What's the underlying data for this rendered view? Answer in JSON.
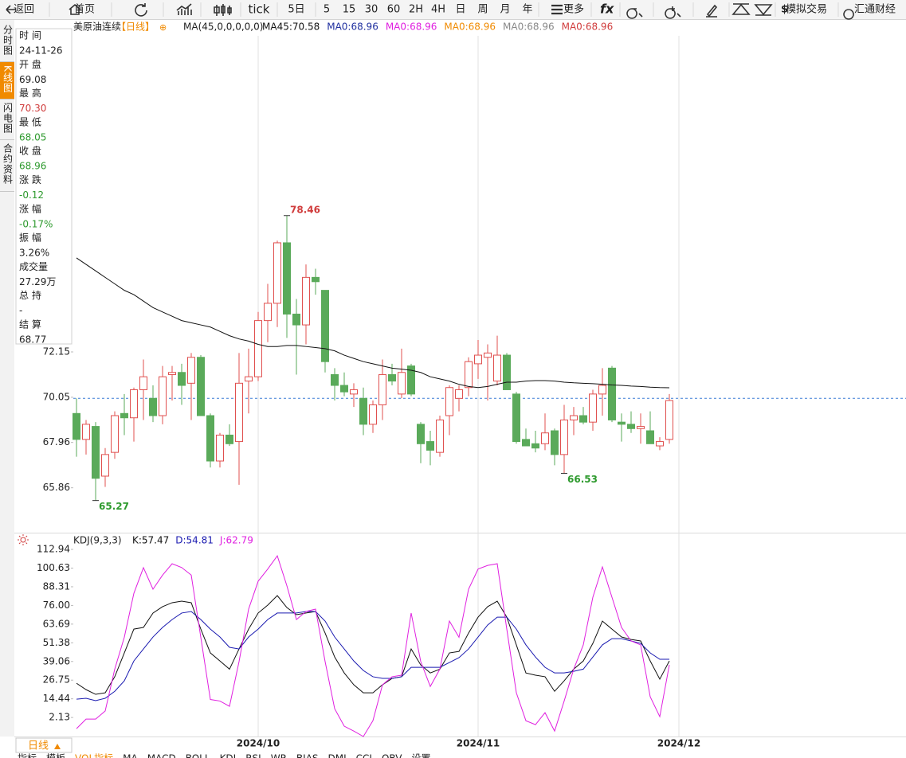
{
  "toolbar": [
    "返回",
    "首页",
    "tick",
    "5日",
    "5",
    "15",
    "30",
    "60",
    "2H",
    "4H",
    "日",
    "周",
    "月",
    "年",
    "更多",
    "模拟交易",
    "汇通财经"
  ],
  "side_tabs": [
    {
      "text": "分时图",
      "active": false
    },
    {
      "text": "K线图",
      "active": true
    },
    {
      "text": "闪电图",
      "active": false
    },
    {
      "text": "合约资料",
      "active": false
    }
  ],
  "info_panel": [
    {
      "label": "时 间",
      "value": "24-11-26",
      "color": "#222222"
    },
    {
      "label": "开 盘",
      "value": "69.08",
      "color": "#222222"
    },
    {
      "label": "最 高",
      "value": "70.30",
      "color": "#d03c3c"
    },
    {
      "label": "最 低",
      "value": "68.05",
      "color": "#2e9a2e"
    },
    {
      "label": "收 盘",
      "value": "68.96",
      "color": "#2e9a2e"
    },
    {
      "label": "涨 跌",
      "value": "-0.12",
      "color": "#2e9a2e"
    },
    {
      "label": "涨 幅",
      "value": "-0.17%",
      "color": "#2e9a2e"
    },
    {
      "label": "振 幅",
      "value": "3.26%",
      "color": "#222222"
    },
    {
      "label": "成交量",
      "value": "27.29万",
      "color": "#222222"
    },
    {
      "label": "总 持",
      "value": "-",
      "color": "#222222"
    },
    {
      "label": "结 算",
      "value": "68.77",
      "color": "#222222"
    }
  ],
  "chart_data": [
    {
      "type": "candlestick",
      "title": "美原油连续",
      "period": "【日线】",
      "indicator": "MA(45,0,0,0,0,0)",
      "legend": [
        {
          "text": "MA45:70.58",
          "color": "#111111"
        },
        {
          "text": "MA0:68.96",
          "color": "#1f2f9f"
        },
        {
          "text": "MA0:68.96",
          "color": "#e020e0"
        },
        {
          "text": "MA0:68.96",
          "color": "#f08a00"
        },
        {
          "text": "MA0:68.96",
          "color": "#888888"
        },
        {
          "text": "MA0:68.96",
          "color": "#d03c3c"
        }
      ],
      "open": [
        69.3,
        68.1,
        68.7,
        66.4,
        67.5,
        69.3,
        69.1,
        70.4,
        70.0,
        69.2,
        71.1,
        71.2,
        70.7,
        71.9,
        69.2,
        67.1,
        68.3,
        68.0,
        70.8,
        71.0,
        73.6,
        74.4,
        77.2,
        73.9,
        73.4,
        75.6,
        75.0,
        71.1,
        70.6,
        70.2,
        70.0,
        68.8,
        69.7,
        71.1,
        70.2,
        71.5,
        68.8,
        68.0,
        67.5,
        69.2,
        70.0,
        70.5,
        71.6,
        71.9,
        70.8,
        72.0,
        70.2,
        68.1,
        67.9,
        67.9,
        68.5,
        67.4,
        69.0,
        69.2,
        68.9,
        70.2,
        71.4,
        68.9,
        68.8,
        68.6,
        68.5,
        67.8,
        68.1
      ],
      "high": [
        70.0,
        69.0,
        68.9,
        67.7,
        69.4,
        70.2,
        70.5,
        71.8,
        70.6,
        71.5,
        71.5,
        71.6,
        72.1,
        72.0,
        69.3,
        68.4,
        68.8,
        72.1,
        72.3,
        74.0,
        75.3,
        77.3,
        78.46,
        74.6,
        76.2,
        76.0,
        75.0,
        71.4,
        71.2,
        70.7,
        70.5,
        69.9,
        71.8,
        71.6,
        72.3,
        71.6,
        68.9,
        68.5,
        69.2,
        70.6,
        70.6,
        71.9,
        72.7,
        72.5,
        72.9,
        72.1,
        70.3,
        68.6,
        68.5,
        69.3,
        68.6,
        69.7,
        69.6,
        69.6,
        70.4,
        71.4,
        71.5,
        69.3,
        69.4,
        69.3,
        69.4,
        68.2,
        70.2
      ],
      "low": [
        67.3,
        67.4,
        65.27,
        65.9,
        67.2,
        68.3,
        68.0,
        69.0,
        68.9,
        68.8,
        69.9,
        69.7,
        69.0,
        69.2,
        66.8,
        66.8,
        67.8,
        66.0,
        69.3,
        70.8,
        72.6,
        73.3,
        72.8,
        71.1,
        72.5,
        74.8,
        71.2,
        69.9,
        70.1,
        69.6,
        68.3,
        68.4,
        69.0,
        70.6,
        70.0,
        70.1,
        67.0,
        66.9,
        67.3,
        68.3,
        69.4,
        70.1,
        70.9,
        69.9,
        70.6,
        70.4,
        67.9,
        67.8,
        67.5,
        67.6,
        66.9,
        66.53,
        68.3,
        68.8,
        68.5,
        69.2,
        68.9,
        68.0,
        68.4,
        67.9,
        67.9,
        67.6,
        67.9
      ],
      "close": [
        68.1,
        68.8,
        66.3,
        67.4,
        69.2,
        69.1,
        70.4,
        71.0,
        69.2,
        71.0,
        71.2,
        70.6,
        71.9,
        69.2,
        67.1,
        68.3,
        67.9,
        70.7,
        71.0,
        73.6,
        74.4,
        77.2,
        73.9,
        73.4,
        75.6,
        75.4,
        71.7,
        70.6,
        70.3,
        70.4,
        68.8,
        69.7,
        71.1,
        70.8,
        71.2,
        70.2,
        67.9,
        67.6,
        69.0,
        70.5,
        70.4,
        71.7,
        72.0,
        72.1,
        72.0,
        70.4,
        68.0,
        67.8,
        67.7,
        68.4,
        67.4,
        69.0,
        69.2,
        68.9,
        70.2,
        70.6,
        69.0,
        68.8,
        68.6,
        68.7,
        67.9,
        68.0,
        69.9
      ],
      "up_color": "#e0504f",
      "down_color": "#5aaa5a",
      "ma": {
        "color": "#111111",
        "values": [
          76.5,
          76.2,
          75.9,
          75.6,
          75.3,
          75.0,
          74.8,
          74.5,
          74.2,
          74.0,
          73.8,
          73.6,
          73.5,
          73.4,
          73.3,
          73.1,
          72.9,
          72.75,
          72.65,
          72.5,
          72.4,
          72.4,
          72.45,
          72.45,
          72.4,
          72.35,
          72.3,
          72.2,
          72.0,
          71.85,
          71.7,
          71.6,
          71.5,
          71.4,
          71.35,
          71.3,
          71.2,
          71.0,
          70.9,
          70.8,
          70.65,
          70.55,
          70.5,
          70.55,
          70.65,
          70.75,
          70.75,
          70.8,
          70.82,
          70.82,
          70.8,
          70.75,
          70.72,
          70.7,
          70.68,
          70.65,
          70.62,
          70.6,
          70.57,
          70.55,
          70.52,
          70.5,
          70.49
        ]
      },
      "last_price": 70.0,
      "last_price_color": "#3a7bd5",
      "annotations": [
        {
          "text": "78.46",
          "index": 22,
          "field": "high",
          "color": "#d03c3c"
        },
        {
          "text": "65.27",
          "index": 2,
          "field": "low",
          "color": "#2e9a2e"
        },
        {
          "text": "66.53",
          "index": 51,
          "field": "low",
          "color": "#2e9a2e"
        }
      ],
      "ylim": [
        63.82,
        86.78
      ],
      "yticks": [
        65.86,
        67.96,
        70.05,
        72.15
      ],
      "xticks": [
        {
          "value": 19,
          "label": "2024/10"
        },
        {
          "value": 42,
          "label": "2024/11"
        },
        {
          "value": 63,
          "label": "2024/12"
        }
      ]
    },
    {
      "type": "line",
      "title": "KDJ(9,3,3)",
      "series": [
        {
          "name": "K:57.47",
          "color": "#111111",
          "values": [
            24.7,
            20.5,
            17.4,
            18.4,
            29,
            44.7,
            60.4,
            61.5,
            71,
            75.2,
            77.8,
            78.8,
            77.8,
            60.4,
            44.7,
            39.4,
            34,
            47.3,
            60.4,
            71,
            76.2,
            82.5,
            74.6,
            69.9,
            71,
            72,
            57.8,
            42,
            31.5,
            23.7,
            18.4,
            18.4,
            23.7,
            27.9,
            29,
            47.3,
            36.8,
            31.5,
            34,
            44.7,
            45.7,
            57.8,
            68.3,
            75.2,
            78.8,
            68.3,
            50,
            31.5,
            30,
            29,
            19.4,
            26.3,
            34,
            39.4,
            51,
            65.7,
            60.4,
            55.2,
            53.6,
            52.6,
            39.4,
            27.4,
            39.4
          ]
        },
        {
          "name": "D:54.81",
          "color": "#1a1ab0",
          "values": [
            14.2,
            14.8,
            13.2,
            14.8,
            19.4,
            26.3,
            39.4,
            47.3,
            55.2,
            61.5,
            66.7,
            71,
            72,
            66.7,
            60.4,
            55.2,
            48.4,
            47.3,
            55.2,
            60.4,
            66.7,
            71,
            71,
            71,
            72,
            72,
            65.7,
            55.2,
            47.3,
            39.4,
            33.1,
            29,
            27.9,
            27.9,
            29,
            35.2,
            35.2,
            35.2,
            35.2,
            38.4,
            41.6,
            47.3,
            55.2,
            63.1,
            68.3,
            68.3,
            60.4,
            50,
            42,
            35.2,
            31.5,
            31.5,
            32.6,
            34,
            42,
            50,
            54.1,
            54.1,
            52.6,
            51,
            44.7,
            40.5,
            40.5
          ]
        },
        {
          "name": "J:62.79",
          "color": "#e020e0",
          "values": [
            -5.2,
            1.1,
            1.1,
            6.4,
            34,
            55,
            84,
            100.9,
            86.7,
            96,
            103.5,
            101,
            96,
            55,
            14,
            13,
            9.5,
            39,
            73.6,
            92,
            100,
            108.7,
            89,
            66.7,
            72,
            73.6,
            39,
            7.9,
            -3.6,
            -6.8,
            -10.4,
            0,
            23.7,
            29,
            30,
            71,
            39,
            22.6,
            34,
            65.7,
            55,
            86.7,
            100,
            102.4,
            103.5,
            60.4,
            18.4,
            0,
            -2.6,
            5.3,
            -6.8,
            13,
            34,
            50,
            81.4,
            101.4,
            81.4,
            61.5,
            52.6,
            50,
            15.8,
            2.7,
            36.8
          ]
        }
      ],
      "ylim": [
        -10.4,
        122.4
      ],
      "yticks": [
        112.94,
        100.63,
        88.31,
        {
          "value": 76,
          "label": "76.00"
        },
        63.69,
        51.38,
        39.06,
        26.75,
        14.44,
        2.13
      ]
    }
  ],
  "bottom": {
    "period": "日线",
    "tabs": [
      "指标",
      "模板",
      "VOL指标",
      "MA",
      "MACD",
      "BOLL",
      "KDJ",
      "RSI",
      "WR",
      "BIAS",
      "DMI",
      "CCI",
      "OBV",
      "设置"
    ]
  }
}
